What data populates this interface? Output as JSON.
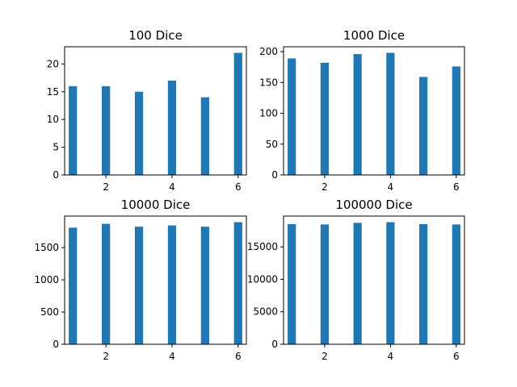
{
  "chart_data": [
    {
      "type": "bar",
      "title": "100 Dice",
      "x": [
        1,
        2,
        3,
        4,
        5,
        6
      ],
      "values": [
        16,
        16,
        15,
        17,
        14,
        22
      ],
      "xlabel": "",
      "ylabel": "",
      "xlim": [
        0.75,
        6.25
      ],
      "ylim": [
        0,
        23.1
      ],
      "xticks": [
        2,
        4,
        6
      ],
      "xtick_labels": [
        "2",
        "4",
        "6"
      ],
      "yticks": [
        0,
        5,
        10,
        15,
        20
      ],
      "ytick_labels": [
        "0",
        "5",
        "10",
        "15",
        "20"
      ],
      "color": "#1f77b4",
      "grid": false,
      "legend": false
    },
    {
      "type": "bar",
      "title": "1000 Dice",
      "x": [
        1,
        2,
        3,
        4,
        5,
        6
      ],
      "values": [
        189,
        182,
        196,
        198,
        159,
        176
      ],
      "xlabel": "",
      "ylabel": "",
      "xlim": [
        0.75,
        6.25
      ],
      "ylim": [
        0,
        207.9
      ],
      "xticks": [
        2,
        4,
        6
      ],
      "xtick_labels": [
        "2",
        "4",
        "6"
      ],
      "yticks": [
        0,
        50,
        100,
        150,
        200
      ],
      "ytick_labels": [
        "0",
        "50",
        "100",
        "150",
        "200"
      ],
      "color": "#1f77b4",
      "grid": false,
      "legend": false
    },
    {
      "type": "bar",
      "title": "10000 Dice",
      "x": [
        1,
        2,
        3,
        4,
        5,
        6
      ],
      "values": [
        1810,
        1870,
        1825,
        1845,
        1825,
        1895
      ],
      "xlabel": "",
      "ylabel": "",
      "xlim": [
        0.75,
        6.25
      ],
      "ylim": [
        0,
        1990
      ],
      "xticks": [
        2,
        4,
        6
      ],
      "xtick_labels": [
        "2",
        "4",
        "6"
      ],
      "yticks": [
        0,
        500,
        1000,
        1500
      ],
      "ytick_labels": [
        "0",
        "500",
        "1000",
        "1500"
      ],
      "color": "#1f77b4",
      "grid": false,
      "legend": false
    },
    {
      "type": "bar",
      "title": "100000 Dice",
      "x": [
        1,
        2,
        3,
        4,
        5,
        6
      ],
      "values": [
        18500,
        18450,
        18700,
        18800,
        18500,
        18450
      ],
      "xlabel": "",
      "ylabel": "",
      "xlim": [
        0.75,
        6.25
      ],
      "ylim": [
        0,
        19740
      ],
      "xticks": [
        2,
        4,
        6
      ],
      "xtick_labels": [
        "2",
        "4",
        "6"
      ],
      "yticks": [
        0,
        5000,
        10000,
        15000
      ],
      "ytick_labels": [
        "0",
        "5000",
        "10000",
        "15000"
      ],
      "color": "#1f77b4",
      "grid": false,
      "legend": false
    }
  ]
}
